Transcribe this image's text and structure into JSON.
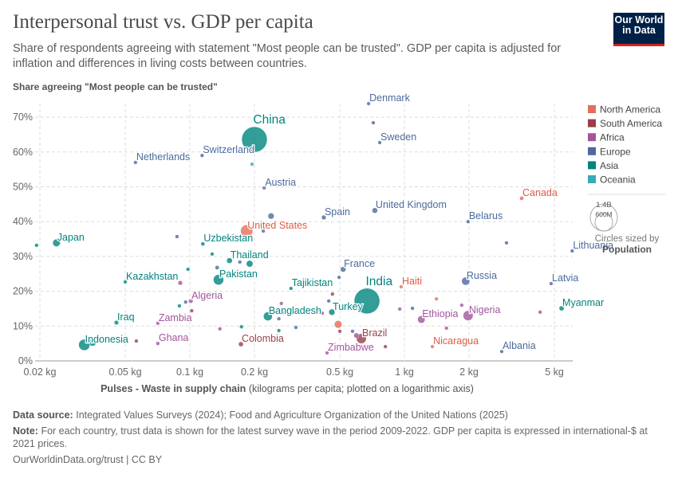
{
  "header": {
    "title": "Interpersonal trust vs. GDP per capita",
    "subtitle": "Share of respondents agreeing with statement \"Most people can be trusted\". GDP per capita is adjusted for inflation and differences in living costs between countries.",
    "logo": "Our World in Data"
  },
  "footer": {
    "source_label": "Data source:",
    "source": "Integrated Values Surveys (2024); Food and Agriculture Organization of the United Nations (2025)",
    "note_label": "Note:",
    "note": "For each country, trust data is shown for the latest survey wave in the period 2009-2022. GDP per capita is expressed in international-$ at 2021 prices.",
    "credit": "OurWorldinData.org/trust | CC BY"
  },
  "chart_data": {
    "type": "scatter",
    "ylabel": "Share agreeing \"Most people can be trusted\"",
    "xlabel_bold": "Pulses - Waste in supply chain",
    "xlabel_rest": "(kilograms per capita; plotted on a logarithmic axis)",
    "x_scale": "log",
    "xlim": [
      0.019,
      6.1
    ],
    "ylim": [
      0,
      70
    ],
    "x_ticks": [
      {
        "value": 0.02,
        "label": "0.02 kg"
      },
      {
        "value": 0.05,
        "label": "0.05 kg"
      },
      {
        "value": 0.1,
        "label": "0.1 kg"
      },
      {
        "value": 0.2,
        "label": "0.2 kg"
      },
      {
        "value": 0.5,
        "label": "0.5 kg"
      },
      {
        "value": 1,
        "label": "1 kg"
      },
      {
        "value": 2,
        "label": "2 kg"
      },
      {
        "value": 5,
        "label": "5 kg"
      }
    ],
    "y_ticks": [
      {
        "value": 0,
        "label": "0%"
      },
      {
        "value": 10,
        "label": "10%"
      },
      {
        "value": 20,
        "label": "20%"
      },
      {
        "value": 30,
        "label": "30%"
      },
      {
        "value": 40,
        "label": "40%"
      },
      {
        "value": 50,
        "label": "50%"
      },
      {
        "value": 60,
        "label": "60%"
      },
      {
        "value": 70,
        "label": "70%"
      }
    ],
    "grid": true,
    "legend_placement": "right",
    "legend": [
      {
        "name": "North America",
        "color": "#e56e5a"
      },
      {
        "name": "South America",
        "color": "#9a3f4a"
      },
      {
        "name": "Africa",
        "color": "#a2559c"
      },
      {
        "name": "Europe",
        "color": "#4c6a9c"
      },
      {
        "name": "Asia",
        "color": "#00847e"
      },
      {
        "name": "Oceania",
        "color": "#38aaba"
      }
    ],
    "size_legend": {
      "values": [
        "1.4B",
        "600M"
      ],
      "caption": "Circles sized by",
      "variable": "Population"
    },
    "points": [
      {
        "label": "Japan",
        "x": 0.0239,
        "y": 33.9,
        "continent": "Asia",
        "pop": 125000000
      },
      {
        "label": "",
        "x": 0.0193,
        "y": 33.2,
        "continent": "Asia",
        "pop": 24000000
      },
      {
        "label": "Netherlands",
        "x": 0.0558,
        "y": 57.0,
        "continent": "Europe",
        "pop": 17000000
      },
      {
        "label": "Switzerland",
        "x": 0.114,
        "y": 59.0,
        "continent": "Europe",
        "pop": 9000000
      },
      {
        "label": "China",
        "x": 0.2,
        "y": 63.6,
        "continent": "Asia",
        "pop": 1410000000
      },
      {
        "label": "",
        "x": 0.195,
        "y": 56.5,
        "continent": "Oceania",
        "pop": 5000000
      },
      {
        "label": "Austria",
        "x": 0.222,
        "y": 49.7,
        "continent": "Europe",
        "pop": 9000000
      },
      {
        "label": "Denmark",
        "x": 0.681,
        "y": 73.9,
        "continent": "Europe",
        "pop": 6000000
      },
      {
        "label": "",
        "x": 0.716,
        "y": 68.4,
        "continent": "Europe",
        "pop": 5500000
      },
      {
        "label": "Sweden",
        "x": 0.767,
        "y": 62.7,
        "continent": "Europe",
        "pop": 10000000
      },
      {
        "label": "Canada",
        "x": 3.52,
        "y": 46.7,
        "continent": "North America",
        "pop": 38000000
      },
      {
        "label": "United Kingdom",
        "x": 0.728,
        "y": 43.2,
        "continent": "Europe",
        "pop": 67000000
      },
      {
        "label": "Spain",
        "x": 0.421,
        "y": 41.2,
        "continent": "Europe",
        "pop": 47000000
      },
      {
        "label": "Belarus",
        "x": 1.98,
        "y": 40.0,
        "continent": "Europe",
        "pop": 9000000
      },
      {
        "label": "",
        "x": 2.99,
        "y": 33.9,
        "continent": "Europe",
        "pop": 6000000
      },
      {
        "label": "Lithuania",
        "x": 6.05,
        "y": 31.6,
        "continent": "Europe",
        "pop": 3000000
      },
      {
        "label": "United States",
        "x": 0.184,
        "y": 37.3,
        "continent": "North America",
        "pop": 333000000
      },
      {
        "label": "",
        "x": 0.239,
        "y": 41.6,
        "continent": "Europe",
        "pop": 83000000
      },
      {
        "label": "",
        "x": 0.2,
        "y": 38.4,
        "continent": "Asia",
        "pop": 30000000
      },
      {
        "label": "",
        "x": 0.22,
        "y": 37.3,
        "continent": "Europe",
        "pop": 5000000
      },
      {
        "label": "",
        "x": 0.0871,
        "y": 35.7,
        "continent": "Europe",
        "pop": 6000000
      },
      {
        "label": "Uzbekistan",
        "x": 0.115,
        "y": 33.6,
        "continent": "Asia",
        "pop": 35000000
      },
      {
        "label": "",
        "x": 0.127,
        "y": 30.7,
        "continent": "Asia",
        "pop": 10000000
      },
      {
        "label": "Thailand",
        "x": 0.153,
        "y": 28.8,
        "continent": "Asia",
        "pop": 70000000
      },
      {
        "label": "",
        "x": 0.171,
        "y": 28.4,
        "continent": "Europe",
        "pop": 20000000
      },
      {
        "label": "",
        "x": 0.19,
        "y": 27.9,
        "continent": "Asia",
        "pop": 98000000
      },
      {
        "label": "",
        "x": 0.134,
        "y": 26.8,
        "continent": "Europe",
        "pop": 38000000
      },
      {
        "label": "Pakistan",
        "x": 0.136,
        "y": 23.3,
        "continent": "Asia",
        "pop": 235000000
      },
      {
        "label": "",
        "x": 0.098,
        "y": 26.3,
        "continent": "Asia",
        "pop": 7000000
      },
      {
        "label": "Kazakhstan",
        "x": 0.05,
        "y": 22.7,
        "continent": "Asia",
        "pop": 5000000
      },
      {
        "label": "",
        "x": 0.0902,
        "y": 22.4,
        "continent": "Africa",
        "pop": 45000000
      },
      {
        "label": "France",
        "x": 0.518,
        "y": 26.3,
        "continent": "Europe",
        "pop": 68000000
      },
      {
        "label": "",
        "x": 0.496,
        "y": 24.0,
        "continent": "Europe",
        "pop": 20000000
      },
      {
        "label": "Tajikistan",
        "x": 0.296,
        "y": 20.8,
        "continent": "Asia",
        "pop": 10000000
      },
      {
        "label": "",
        "x": 0.462,
        "y": 19.2,
        "continent": "South America",
        "pop": 20000000
      },
      {
        "label": "India",
        "x": 0.669,
        "y": 17.2,
        "continent": "Asia",
        "pop": 1420000000
      },
      {
        "label": "Haiti",
        "x": 0.966,
        "y": 21.3,
        "continent": "North America",
        "pop": 7000000
      },
      {
        "label": "",
        "x": 1.41,
        "y": 17.8,
        "continent": "North America",
        "pop": 6000000
      },
      {
        "label": "Russia",
        "x": 1.93,
        "y": 22.9,
        "continent": "Europe",
        "pop": 144000000
      },
      {
        "label": "Latvia",
        "x": 4.83,
        "y": 22.2,
        "continent": "Europe",
        "pop": 2000000
      },
      {
        "label": "Myanmar",
        "x": 5.4,
        "y": 15.1,
        "continent": "Asia",
        "pop": 54000000
      },
      {
        "label": "",
        "x": 4.29,
        "y": 14.0,
        "continent": "Africa",
        "pop": 6000000
      },
      {
        "label": "",
        "x": 1.85,
        "y": 16.0,
        "continent": "Africa",
        "pop": 6000000
      },
      {
        "label": "Nigeria",
        "x": 1.98,
        "y": 13.0,
        "continent": "Africa",
        "pop": 218000000
      },
      {
        "label": "Ethiopia",
        "x": 1.199,
        "y": 11.9,
        "continent": "Africa",
        "pop": 123000000
      },
      {
        "label": "",
        "x": 1.3,
        "y": 12.9,
        "continent": "Asia",
        "pop": 3000000
      },
      {
        "label": "",
        "x": 0.951,
        "y": 14.9,
        "continent": "Africa",
        "pop": 7000000
      },
      {
        "label": "",
        "x": 1.09,
        "y": 15.1,
        "continent": "Europe",
        "pop": 4000000
      },
      {
        "label": "Turkey",
        "x": 0.459,
        "y": 14.0,
        "continent": "Asia",
        "pop": 85000000
      },
      {
        "label": "",
        "x": 0.444,
        "y": 17.2,
        "continent": "Europe",
        "pop": 4000000
      },
      {
        "label": "",
        "x": 0.414,
        "y": 13.7,
        "continent": "Africa",
        "pop": 5000000
      },
      {
        "label": "",
        "x": 0.394,
        "y": 14.6,
        "continent": "South America",
        "pop": 4000000
      },
      {
        "label": "Bangladesh",
        "x": 0.231,
        "y": 12.8,
        "continent": "Asia",
        "pop": 170000000
      },
      {
        "label": "",
        "x": 0.267,
        "y": 16.5,
        "continent": "Africa",
        "pop": 20000000
      },
      {
        "label": "",
        "x": 0.274,
        "y": 13.7,
        "continent": "Europe",
        "pop": 4000000
      },
      {
        "label": "",
        "x": 0.26,
        "y": 12.1,
        "continent": "Europe",
        "pop": 6000000
      },
      {
        "label": "",
        "x": 0.312,
        "y": 9.6,
        "continent": "Europe",
        "pop": 6000000
      },
      {
        "label": "",
        "x": 0.26,
        "y": 8.7,
        "continent": "Asia",
        "pop": 5000000
      },
      {
        "label": "",
        "x": 0.174,
        "y": 9.8,
        "continent": "Asia",
        "pop": 5000000
      },
      {
        "label": "",
        "x": 0.138,
        "y": 9.2,
        "continent": "Africa",
        "pop": 6000000
      },
      {
        "label": "",
        "x": 0.491,
        "y": 10.5,
        "continent": "North America",
        "pop": 127000000
      },
      {
        "label": "",
        "x": 0.5,
        "y": 8.5,
        "continent": "South America",
        "pop": 5000000
      },
      {
        "label": "Brazil",
        "x": 0.63,
        "y": 6.4,
        "continent": "South America",
        "pop": 215000000
      },
      {
        "label": "",
        "x": 0.597,
        "y": 7.3,
        "continent": "Africa",
        "pop": 60000000
      },
      {
        "label": "",
        "x": 0.573,
        "y": 8.5,
        "continent": "Europe",
        "pop": 5000000
      },
      {
        "label": "Zimbabwe",
        "x": 0.436,
        "y": 2.3,
        "continent": "Africa",
        "pop": 16000000
      },
      {
        "label": "",
        "x": 0.815,
        "y": 4.1,
        "continent": "South America",
        "pop": 12000000
      },
      {
        "label": "Nicaragua",
        "x": 1.35,
        "y": 4.1,
        "continent": "North America",
        "pop": 7000000
      },
      {
        "label": "Albania",
        "x": 2.84,
        "y": 2.7,
        "continent": "Europe",
        "pop": 3000000
      },
      {
        "label": "",
        "x": 1.57,
        "y": 9.4,
        "continent": "Africa",
        "pop": 25000000
      },
      {
        "label": "Colombia",
        "x": 0.173,
        "y": 4.8,
        "continent": "South America",
        "pop": 52000000
      },
      {
        "label": "Ghana",
        "x": 0.0709,
        "y": 5.0,
        "continent": "Africa",
        "pop": 33000000
      },
      {
        "label": "Zambia",
        "x": 0.0709,
        "y": 10.8,
        "continent": "Africa",
        "pop": 19000000
      },
      {
        "label": "",
        "x": 0.102,
        "y": 14.4,
        "continent": "South America",
        "pop": 3000000
      },
      {
        "label": "Algeria",
        "x": 0.101,
        "y": 17.2,
        "continent": "Africa",
        "pop": 45000000
      },
      {
        "label": "",
        "x": 0.0956,
        "y": 16.9,
        "continent": "Europe",
        "pop": 4000000
      },
      {
        "label": "",
        "x": 0.0894,
        "y": 15.8,
        "continent": "Asia",
        "pop": 6000000
      },
      {
        "label": "Iraq",
        "x": 0.0455,
        "y": 11.0,
        "continent": "Asia",
        "pop": 44000000
      },
      {
        "label": "",
        "x": 0.0563,
        "y": 5.7,
        "continent": "South America",
        "pop": 6000000
      },
      {
        "label": "Indonesia",
        "x": 0.0322,
        "y": 4.6,
        "continent": "Asia",
        "pop": 275000000
      },
      {
        "label": "",
        "x": 0.0352,
        "y": 5.3,
        "continent": "Asia",
        "pop": 115000000
      }
    ]
  }
}
